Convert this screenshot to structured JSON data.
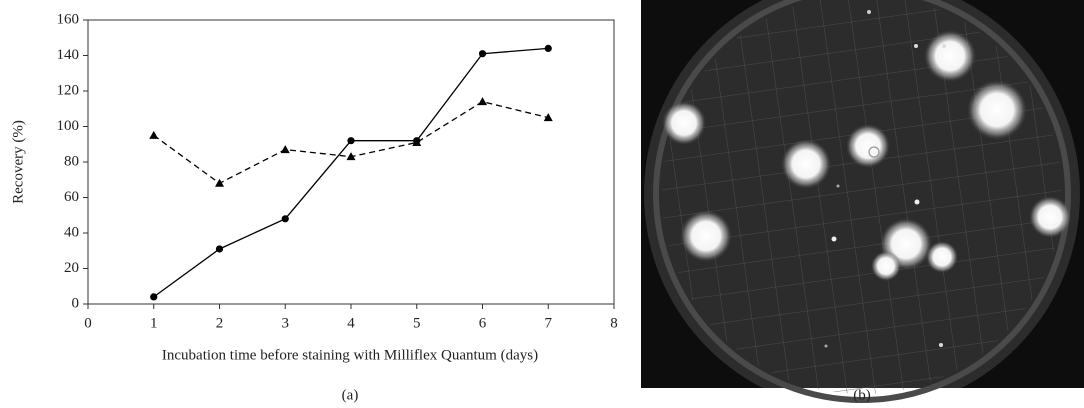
{
  "chart_data": {
    "type": "line",
    "x_label": "Incubation time before staining with Milliflex Quantum (days)",
    "y_label": "Recovery (%)",
    "x": [
      1,
      2,
      3,
      4,
      5,
      6,
      7
    ],
    "series": [
      {
        "color": "#000000",
        "line_style": "solid",
        "marker": "circle",
        "values": [
          4,
          31,
          48,
          92,
          92,
          141,
          144
        ]
      },
      {
        "color": "#000000",
        "line_style": "dashed",
        "marker": "triangle",
        "values": [
          95,
          68,
          87,
          83,
          91,
          114,
          105
        ]
      }
    ],
    "xlim": [
      0,
      8
    ],
    "xticks": [
      0,
      1,
      2,
      3,
      4,
      5,
      6,
      7,
      8
    ],
    "ylim": [
      0,
      160
    ],
    "yticks": [
      0,
      20,
      40,
      60,
      80,
      100,
      120,
      140,
      160
    ],
    "grid": false
  },
  "panel_labels": [
    "(a)",
    "(b)"
  ]
}
